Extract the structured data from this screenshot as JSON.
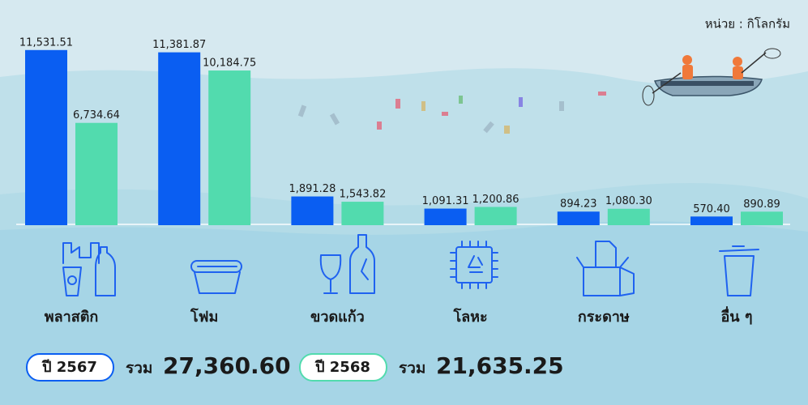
{
  "chart_data": {
    "type": "bar",
    "unit": "หน่วย : กิโลกรัม",
    "categories": [
      "พลาสติก",
      "โฟม",
      "ขวดแก้ว",
      "โลหะ",
      "กระดาษ",
      "อื่น ๆ"
    ],
    "series": [
      {
        "name": "ปี 2567",
        "color": "#0a5ef2",
        "values": [
          11531.51,
          11381.87,
          1891.28,
          1091.31,
          894.23,
          570.4
        ],
        "value_labels": [
          "11,531.51",
          "11,381.87",
          "1,891.28",
          "1,091.31",
          "894.23",
          "570.40"
        ],
        "total": {
          "value": 27360.6,
          "label": "27,360.60"
        }
      },
      {
        "name": "ปี 2568",
        "color": "#52dbae",
        "values": [
          6734.64,
          10184.75,
          1543.82,
          1200.86,
          1080.3,
          890.89
        ],
        "value_labels": [
          "6,734.64",
          "10,184.75",
          "1,543.82",
          "1,200.86",
          "1,080.30",
          "890.89"
        ],
        "total": {
          "value": 21635.25,
          "label": "21,635.25"
        }
      }
    ],
    "total_text": "รวม",
    "ylim": [
      0,
      12000
    ]
  }
}
